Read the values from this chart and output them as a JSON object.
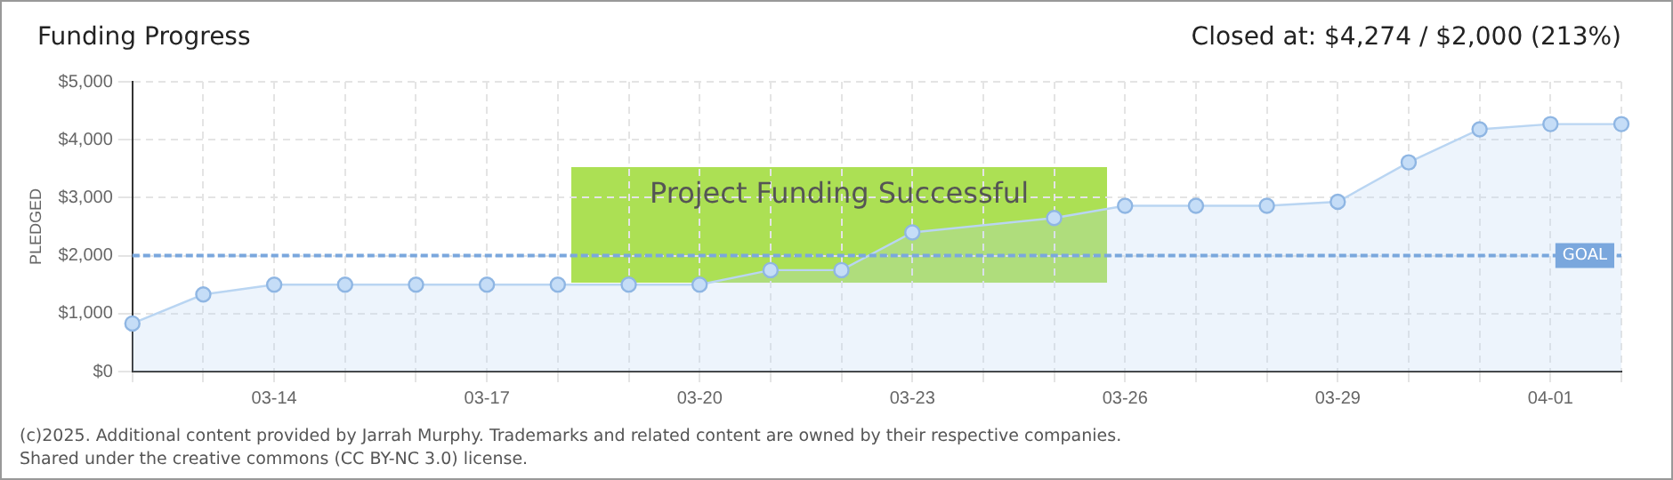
{
  "chart_data": {
    "type": "area",
    "title": "Funding Progress",
    "subtitle": "Closed at: $4,274 / $2,000 (213%)",
    "ylabel": "PLEDGED",
    "categories": [
      null,
      null,
      "03-14",
      null,
      null,
      "03-17",
      null,
      null,
      "03-20",
      null,
      null,
      "03-23",
      null,
      null,
      "03-26",
      null,
      null,
      "03-29",
      null,
      null,
      "04-01",
      null
    ],
    "series": [
      {
        "color": "#b9d5f2",
        "values": [
          830,
          1330,
          1500,
          1500,
          1500,
          1500,
          1500,
          1500,
          1500,
          1750,
          1750,
          2400,
          null,
          2650,
          2860,
          2860,
          2860,
          2930,
          3610,
          4180,
          4270,
          4270
        ]
      }
    ],
    "ylim": [
      0,
      5000
    ],
    "yticks": [
      {
        "value": 0,
        "label": "$0"
      },
      {
        "value": 1000,
        "label": "$1,000"
      },
      {
        "value": 2000,
        "label": "$2,000"
      },
      {
        "value": 3000,
        "label": "$3,000"
      },
      {
        "value": 4000,
        "label": "$4,000"
      },
      {
        "value": 5000,
        "label": "$5,000"
      }
    ],
    "ref_lines": [
      {
        "axis": "y",
        "value": 2000,
        "label": "GOAL",
        "color": "#7aa7dd",
        "line_style": "dashed"
      }
    ],
    "annotations": [
      "Project Funding Successful",
      "(c)2025. Additional content provided by Jarrah Murphy. Trademarks and related content are owned by their respective companies.",
      "Shared under the creative commons (CC BY-NC 3.0) license."
    ],
    "grid": true,
    "legend": false,
    "marker": "circle"
  }
}
